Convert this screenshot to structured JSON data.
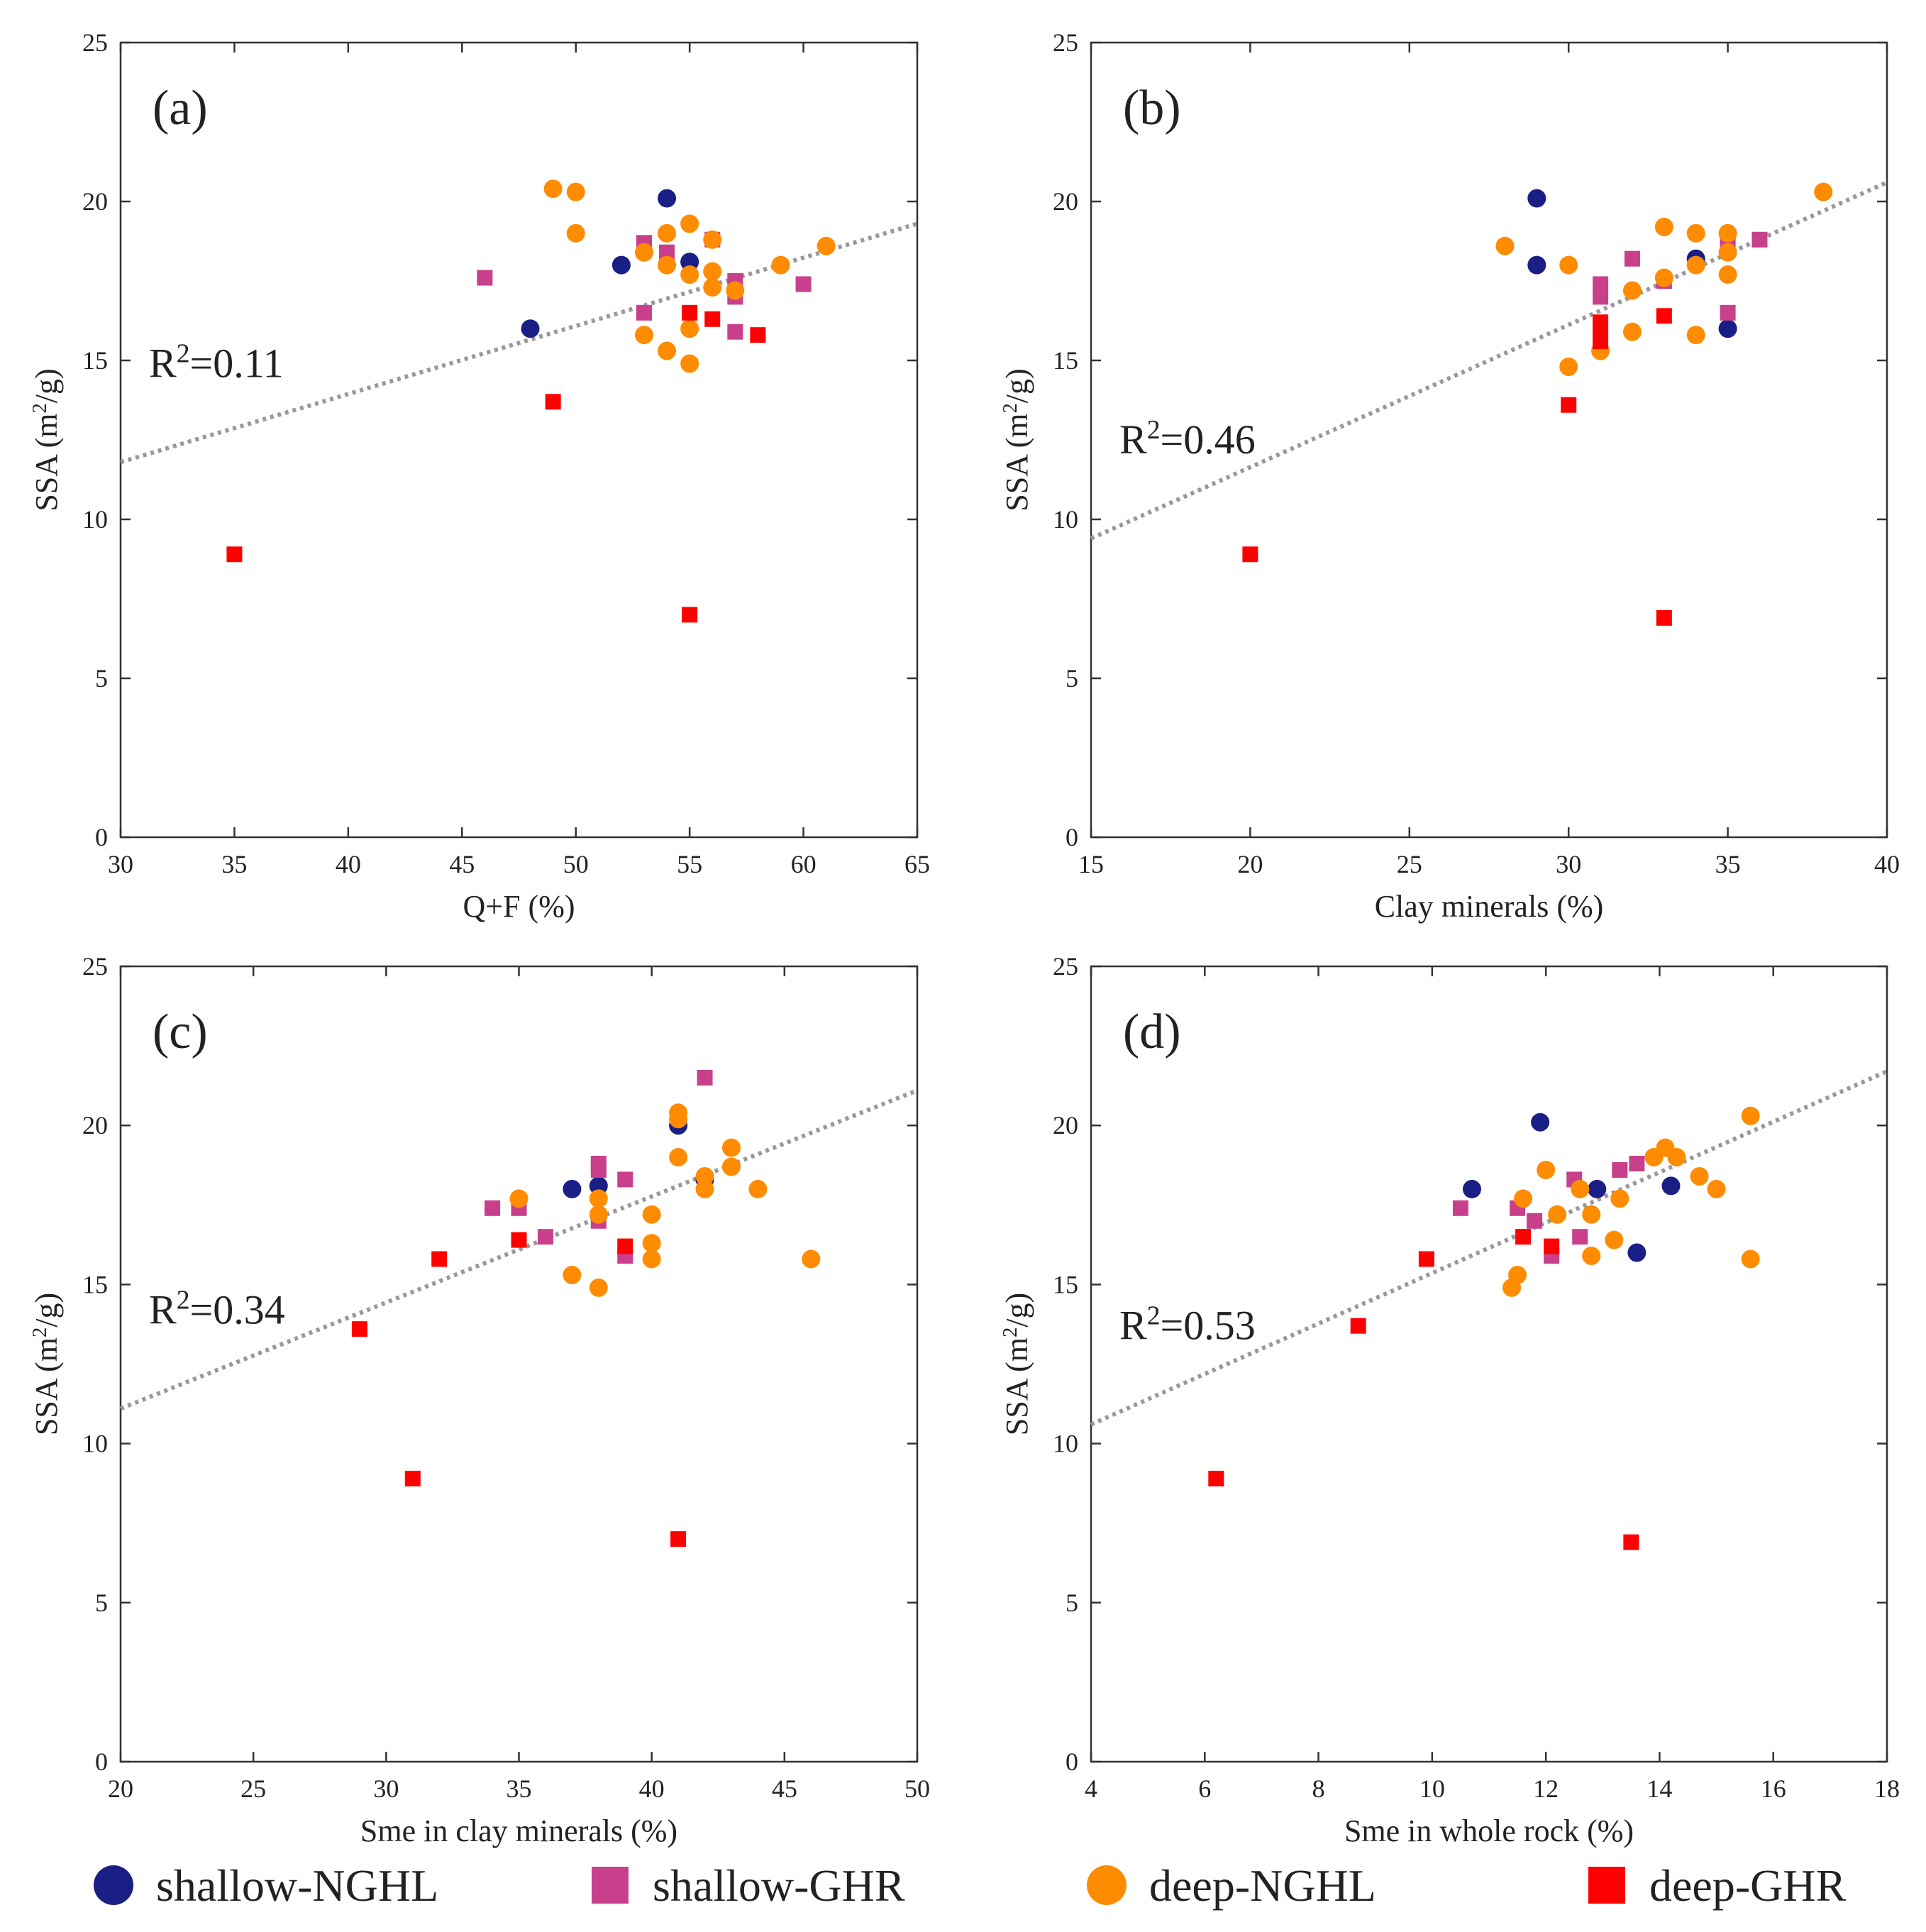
{
  "legend": [
    {
      "key": "shallow_NGHL",
      "label": "shallow-NGHL",
      "marker": "circle",
      "color": "#1a1f85"
    },
    {
      "key": "shallow_GHR",
      "label": "shallow-GHR",
      "marker": "square",
      "color": "#c8408c"
    },
    {
      "key": "deep_NGHL",
      "label": "deep-NGHL",
      "marker": "circle",
      "color": "#ff8c00"
    },
    {
      "key": "deep_GHR",
      "label": "deep-GHR",
      "marker": "square",
      "color": "#ff0000"
    }
  ],
  "chart_data": [
    {
      "type": "scatter",
      "panel": "(a)",
      "r2_text": "R²=0.11",
      "xlabel": "Q+F (%)",
      "ylabel": "SSA (m²/g)",
      "xlim": [
        30,
        65
      ],
      "ylim": [
        0,
        25
      ],
      "xticks": [
        30,
        35,
        40,
        45,
        50,
        55,
        60,
        65
      ],
      "yticks": [
        0,
        5,
        10,
        15,
        20,
        25
      ],
      "trendline": {
        "x": [
          30,
          65
        ],
        "y": [
          11.8,
          19.3
        ]
      },
      "series": [
        {
          "name": "shallow_NGHL",
          "points": [
            [
              48,
              16.0
            ],
            [
              52,
              18.0
            ],
            [
              54,
              20.1
            ],
            [
              55,
              18.1
            ]
          ]
        },
        {
          "name": "shallow_GHR",
          "points": [
            [
              46,
              17.6
            ],
            [
              53,
              18.7
            ],
            [
              53,
              16.5
            ],
            [
              54,
              18.4
            ],
            [
              57,
              17.5
            ],
            [
              57,
              17.0
            ],
            [
              57,
              15.9
            ],
            [
              60,
              17.4
            ],
            [
              56,
              18.8
            ]
          ]
        },
        {
          "name": "deep_NGHL",
          "points": [
            [
              49,
              20.4
            ],
            [
              50,
              20.3
            ],
            [
              50,
              19.0
            ],
            [
              53,
              18.4
            ],
            [
              54,
              19.0
            ],
            [
              54,
              18.0
            ],
            [
              55,
              19.3
            ],
            [
              55,
              17.7
            ],
            [
              56,
              17.8
            ],
            [
              56,
              17.3
            ],
            [
              57,
              17.2
            ],
            [
              53,
              15.8
            ],
            [
              54,
              15.3
            ],
            [
              55,
              14.9
            ],
            [
              55,
              16.0
            ],
            [
              59,
              18.0
            ],
            [
              61,
              18.6
            ],
            [
              56,
              18.8
            ]
          ]
        },
        {
          "name": "deep_GHR",
          "points": [
            [
              35,
              8.9
            ],
            [
              49,
              13.7
            ],
            [
              55,
              7.0
            ],
            [
              55,
              16.5
            ],
            [
              56,
              16.3
            ],
            [
              58,
              15.8
            ]
          ]
        }
      ]
    },
    {
      "type": "scatter",
      "panel": "(b)",
      "r2_text": "R²=0.46",
      "xlabel": "Clay minerals (%)",
      "ylabel": "SSA (m²/g)",
      "xlim": [
        15,
        40
      ],
      "ylim": [
        0,
        25
      ],
      "xticks": [
        15,
        20,
        25,
        30,
        35,
        40
      ],
      "yticks": [
        0,
        5,
        10,
        15,
        20,
        25
      ],
      "trendline": {
        "x": [
          15,
          40
        ],
        "y": [
          9.4,
          20.6
        ]
      },
      "series": [
        {
          "name": "shallow_NGHL",
          "points": [
            [
              29,
              20.1
            ],
            [
              29,
              18.0
            ],
            [
              34,
              18.2
            ],
            [
              35,
              16.0
            ]
          ]
        },
        {
          "name": "shallow_GHR",
          "points": [
            [
              31,
              17.4
            ],
            [
              31,
              17.0
            ],
            [
              32,
              18.2
            ],
            [
              33,
              17.5
            ],
            [
              35,
              16.5
            ],
            [
              35,
              18.7
            ],
            [
              36,
              18.8
            ]
          ]
        },
        {
          "name": "deep_NGHL",
          "points": [
            [
              28,
              18.6
            ],
            [
              30,
              18.0
            ],
            [
              30,
              14.8
            ],
            [
              31,
              15.3
            ],
            [
              32,
              17.2
            ],
            [
              32,
              15.9
            ],
            [
              33,
              19.2
            ],
            [
              33,
              17.6
            ],
            [
              34,
              19.0
            ],
            [
              34,
              18.0
            ],
            [
              34,
              15.8
            ],
            [
              35,
              19.0
            ],
            [
              35,
              18.4
            ],
            [
              35,
              17.7
            ],
            [
              38,
              20.3
            ]
          ]
        },
        {
          "name": "deep_GHR",
          "points": [
            [
              20,
              8.9
            ],
            [
              30,
              13.6
            ],
            [
              31,
              16.2
            ],
            [
              31,
              15.9
            ],
            [
              31,
              15.6
            ],
            [
              33,
              16.4
            ],
            [
              33,
              6.9
            ]
          ]
        }
      ]
    },
    {
      "type": "scatter",
      "panel": "(c)",
      "r2_text": "R²=0.34",
      "xlabel": "Sme in clay minerals (%)",
      "ylabel": "SSA (m²/g)",
      "xlim": [
        20,
        50
      ],
      "ylim": [
        0,
        25
      ],
      "xticks": [
        20,
        25,
        30,
        35,
        40,
        45,
        50
      ],
      "yticks": [
        0,
        5,
        10,
        15,
        20,
        25
      ],
      "trendline": {
        "x": [
          20,
          50
        ],
        "y": [
          11.1,
          21.1
        ]
      },
      "series": [
        {
          "name": "shallow_NGHL",
          "points": [
            [
              37,
              18.0
            ],
            [
              38,
              18.1
            ],
            [
              41,
              20.0
            ],
            [
              42,
              18.3
            ]
          ]
        },
        {
          "name": "shallow_GHR",
          "points": [
            [
              34,
              17.4
            ],
            [
              35,
              17.4
            ],
            [
              36,
              16.5
            ],
            [
              38,
              18.8
            ],
            [
              38,
              18.6
            ],
            [
              38,
              17.0
            ],
            [
              39,
              18.3
            ],
            [
              39,
              15.9
            ],
            [
              42,
              21.5
            ]
          ]
        },
        {
          "name": "deep_NGHL",
          "points": [
            [
              35,
              17.7
            ],
            [
              37,
              15.3
            ],
            [
              38,
              17.7
            ],
            [
              38,
              17.2
            ],
            [
              38,
              14.9
            ],
            [
              40,
              17.2
            ],
            [
              40,
              16.3
            ],
            [
              40,
              15.8
            ],
            [
              41,
              20.4
            ],
            [
              41,
              20.2
            ],
            [
              41,
              19.0
            ],
            [
              42,
              18.4
            ],
            [
              42,
              18.0
            ],
            [
              43,
              19.3
            ],
            [
              43,
              18.7
            ],
            [
              44,
              18.0
            ],
            [
              46,
              15.8
            ]
          ]
        },
        {
          "name": "deep_GHR",
          "points": [
            [
              29,
              13.6
            ],
            [
              31,
              8.9
            ],
            [
              32,
              15.8
            ],
            [
              35,
              16.4
            ],
            [
              39,
              16.2
            ],
            [
              41,
              7.0
            ]
          ]
        }
      ]
    },
    {
      "type": "scatter",
      "panel": "(d)",
      "r2_text": "R²=0.53",
      "xlabel": "Sme in whole rock (%)",
      "ylabel": "SSA (m²/g)",
      "xlim": [
        4,
        18
      ],
      "ylim": [
        0,
        25
      ],
      "xticks": [
        4,
        6,
        8,
        10,
        12,
        14,
        16,
        18
      ],
      "yticks": [
        0,
        5,
        10,
        15,
        20,
        25
      ],
      "trendline": {
        "x": [
          4,
          18
        ],
        "y": [
          10.6,
          21.7
        ]
      },
      "series": [
        {
          "name": "shallow_NGHL",
          "points": [
            [
              10.7,
              18.0
            ],
            [
              11.9,
              20.1
            ],
            [
              12.9,
              18.0
            ],
            [
              13.6,
              16.0
            ],
            [
              14.2,
              18.1
            ]
          ]
        },
        {
          "name": "shallow_GHR",
          "points": [
            [
              10.5,
              17.4
            ],
            [
              11.5,
              17.4
            ],
            [
              11.8,
              17.0
            ],
            [
              12.1,
              15.9
            ],
            [
              12.5,
              18.3
            ],
            [
              12.6,
              16.5
            ],
            [
              13.3,
              18.6
            ],
            [
              13.6,
              18.8
            ]
          ]
        },
        {
          "name": "deep_NGHL",
          "points": [
            [
              11.4,
              14.9
            ],
            [
              11.5,
              15.3
            ],
            [
              11.6,
              17.7
            ],
            [
              12.0,
              18.6
            ],
            [
              12.2,
              17.2
            ],
            [
              12.6,
              18.0
            ],
            [
              12.8,
              17.2
            ],
            [
              12.8,
              15.9
            ],
            [
              13.2,
              16.4
            ],
            [
              13.3,
              17.7
            ],
            [
              13.9,
              19.0
            ],
            [
              14.1,
              19.3
            ],
            [
              14.3,
              19.0
            ],
            [
              14.7,
              18.4
            ],
            [
              15.0,
              18.0
            ],
            [
              15.6,
              20.3
            ],
            [
              15.6,
              15.8
            ]
          ]
        },
        {
          "name": "deep_GHR",
          "points": [
            [
              6.2,
              8.9
            ],
            [
              8.7,
              13.7
            ],
            [
              9.9,
              15.8
            ],
            [
              11.6,
              16.5
            ],
            [
              12.1,
              16.2
            ],
            [
              13.5,
              6.9
            ]
          ]
        }
      ]
    }
  ]
}
